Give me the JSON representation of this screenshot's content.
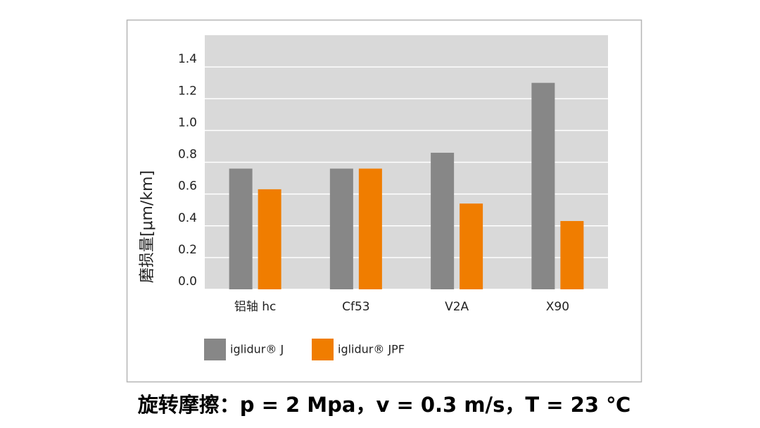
{
  "chart_data": {
    "type": "bar",
    "title": "旋转摩擦：p = 2 Mpa，v = 0.3 m/s，T = 23 ℃",
    "y_label": "磨损量[μm/km]",
    "categories": [
      "铝轴 hc",
      "Cf53",
      "V2A",
      "X90"
    ],
    "series": [
      {
        "name": "iglidur® J",
        "color": "#878787",
        "values": [
          0.76,
          0.76,
          0.86,
          1.3
        ]
      },
      {
        "name": "iglidur® JPF",
        "color": "#f07d00",
        "values": [
          0.63,
          0.76,
          0.54,
          0.43
        ]
      }
    ],
    "ylim": [
      0,
      1.6
    ],
    "yticks": [
      {
        "value": 0,
        "label": "0.0"
      },
      0.2,
      0.4,
      0.6,
      0.8,
      {
        "value": 1,
        "label": "1.0"
      },
      1.2,
      1.4
    ],
    "grid": true
  }
}
